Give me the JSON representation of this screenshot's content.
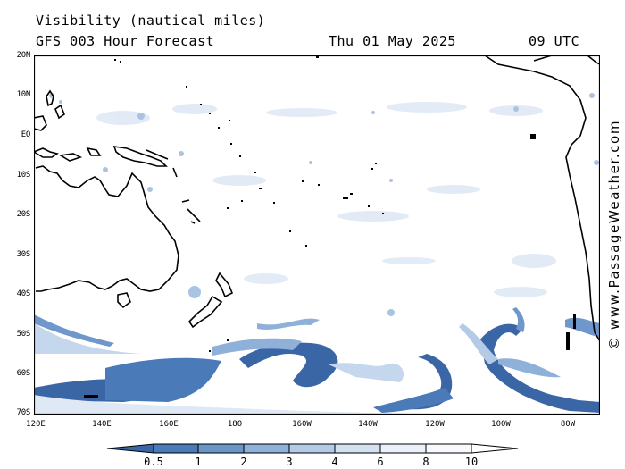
{
  "header": {
    "title": "Visibility (nautical miles)",
    "subtitle": "GFS 003 Hour Forecast",
    "date": "Thu 01 May 2025",
    "time": "09 UTC"
  },
  "watermark": "© www.PassageWeather.com",
  "map": {
    "region": "South Pacific",
    "lat_labels": [
      "20N",
      "10N",
      "EQ",
      "10S",
      "20S",
      "30S",
      "40S",
      "50S",
      "60S",
      "70S"
    ],
    "lon_labels": [
      "120E",
      "140E",
      "160E",
      "180",
      "160W",
      "140W",
      "120W",
      "100W",
      "80W"
    ],
    "land_outline_color": "#000000",
    "ocean_color": "#ffffff"
  },
  "legend": {
    "ticks": [
      "0.5",
      "1",
      "2",
      "3",
      "4",
      "6",
      "8",
      "10"
    ],
    "colors": [
      "#3a66a6",
      "#4a7ab8",
      "#6a95c8",
      "#8fb0d8",
      "#b3cbe6",
      "#d3e1f1",
      "#ebf1f9",
      "#f7f9fd",
      "#ffffff"
    ]
  }
}
